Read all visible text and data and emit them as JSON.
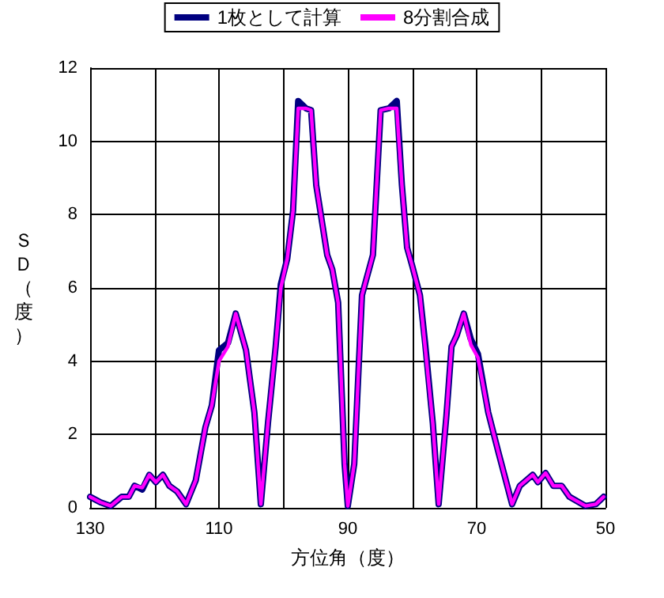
{
  "chart_data": {
    "type": "line",
    "xlabel": "方位角（度）",
    "ylabel": "ＳＤ（度）",
    "xlim": [
      130,
      50
    ],
    "ylim": [
      0,
      12
    ],
    "xticks": [
      130,
      {
        "value": 120,
        "label": null
      },
      110,
      {
        "value": 100,
        "label": null
      },
      90,
      {
        "value": 80,
        "label": null
      },
      70,
      {
        "value": 60,
        "label": null
      },
      50
    ],
    "yticks": [
      0,
      2,
      4,
      6,
      8,
      10,
      12
    ],
    "grid": true,
    "legend": "top",
    "marker": "none",
    "line_style": "solid",
    "x": [
      130,
      128.4,
      126.8,
      125.1,
      124,
      123.1,
      121.9,
      120.8,
      119.8,
      118.7,
      117.7,
      116.5,
      115.1,
      113.6,
      112.1,
      111.1,
      110,
      108.6,
      107.4,
      105.8,
      104.5,
      103.5,
      102.4,
      101.2,
      100.4,
      99.4,
      98.5,
      97.7,
      96.5,
      95.7,
      94.9,
      93.2,
      92.4,
      91.5,
      90.5,
      90,
      89,
      87.8,
      86.1,
      84.9,
      83.6,
      82.4,
      81.6,
      80.8,
      80,
      78.8,
      78,
      76.8,
      75.9,
      74.7,
      73.9,
      73.1,
      72,
      70.9,
      69.8,
      68.2,
      66.6,
      64.5,
      63.3,
      61.3,
      60.5,
      59.3,
      58.1,
      56.8,
      55.6,
      53.1,
      51.5,
      50.3
    ],
    "series": [
      {
        "name": "1枚として計算",
        "color": "#000080",
        "values": [
          0.3,
          0.15,
          0.05,
          0.3,
          0.3,
          0.6,
          0.5,
          0.9,
          0.7,
          0.9,
          0.6,
          0.45,
          0.1,
          0.75,
          2.2,
          2.8,
          4.3,
          4.5,
          5.3,
          4.3,
          2.6,
          0.1,
          2.3,
          4.4,
          6.1,
          6.8,
          8.1,
          11.1,
          10.9,
          10.85,
          8.8,
          6.9,
          6.5,
          5.6,
          1.2,
          0.05,
          1.2,
          5.8,
          6.9,
          10.85,
          10.9,
          11.1,
          8.8,
          7.1,
          6.6,
          5.8,
          4.5,
          2.3,
          0.1,
          2.5,
          4.4,
          4.7,
          5.3,
          4.6,
          4.2,
          2.6,
          1.5,
          0.1,
          0.6,
          0.9,
          0.7,
          0.95,
          0.6,
          0.6,
          0.3,
          0.05,
          0.1,
          0.3
        ]
      },
      {
        "name": "8分割合成",
        "color": "#ff00ff",
        "values": [
          0.3,
          0.15,
          0.05,
          0.3,
          0.3,
          0.6,
          0.55,
          0.9,
          0.7,
          0.9,
          0.6,
          0.45,
          0.1,
          0.75,
          2.2,
          2.8,
          4.0,
          4.4,
          5.3,
          4.3,
          2.6,
          0.1,
          2.3,
          4.4,
          6.0,
          6.8,
          8.1,
          10.9,
          10.9,
          10.85,
          8.8,
          6.9,
          6.5,
          5.6,
          1.2,
          0.05,
          1.2,
          5.8,
          6.9,
          10.85,
          10.9,
          10.9,
          8.8,
          7.1,
          6.6,
          5.8,
          4.4,
          2.3,
          0.1,
          2.5,
          4.4,
          4.7,
          5.3,
          4.45,
          4.1,
          2.6,
          1.5,
          0.1,
          0.6,
          0.9,
          0.7,
          0.95,
          0.6,
          0.6,
          0.3,
          0.05,
          0.1,
          0.3
        ]
      }
    ]
  }
}
